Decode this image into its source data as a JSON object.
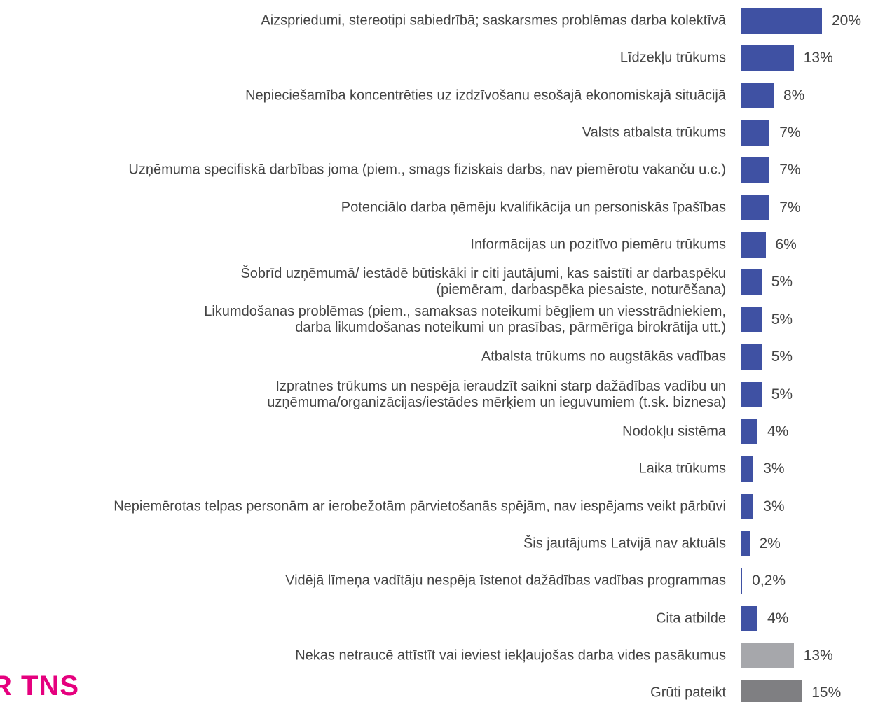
{
  "chart_data": {
    "type": "bar",
    "orientation": "horizontal",
    "categories": [
      "Aizspriedumi, stereotipi sabiedrībā; saskarsmes problēmas darba kolektīvā",
      "Līdzekļu trūkums",
      "Nepieciešamība koncentrēties uz izdzīvošanu esošajā ekonomiskajā situācijā",
      "Valsts atbalsta trūkums",
      "Uzņēmuma specifiskā darbības joma (piem., smags fiziskais darbs, nav piemērotu vakanču u.c.)",
      "Potenciālo darba ņēmēju kvalifikācija un personiskās īpašības",
      "Informācijas un pozitīvo piemēru trūkums",
      "Šobrīd uzņēmumā/ iestādē būtiskāki ir citi jautājumi, kas saistīti ar darbaspēku\n(piemēram, darbaspēka piesaiste, noturēšana)",
      "Likumdošanas problēmas (piem., samaksas noteikumi bēgļiem un viesstrādniekiem,\ndarba likumdošanas noteikumi un prasības, pārmērīga birokrātija utt.)",
      "Atbalsta trūkums no augstākās vadības",
      "Izpratnes trūkums un nespēja ieraudzīt saikni starp dažādības vadību un\nuzņēmuma/organizācijas/iestādes mērķiem un ieguvumiem (t.sk. biznesa)",
      "Nodokļu sistēma",
      "Laika trūkums",
      "Nepiemērotas telpas personām ar ierobežotām pārvietošanās spējām, nav iespējams veikt pārbūvi",
      "Šis jautājums Latvijā nav aktuāls",
      "Vidējā līmeņa vadītāju nespēja īstenot dažādības vadības programmas",
      "Cita atbilde",
      "Nekas netraucē attīstīt vai ieviest iekļaujošas darba vides pasākumus",
      "Grūti pateikt"
    ],
    "values": [
      20,
      13,
      8,
      7,
      7,
      7,
      6,
      5,
      5,
      5,
      5,
      4,
      3,
      3,
      2,
      0.2,
      4,
      13,
      15
    ],
    "value_labels": [
      "20%",
      "13%",
      "8%",
      "7%",
      "7%",
      "7%",
      "6%",
      "5%",
      "5%",
      "5%",
      "5%",
      "4%",
      "3%",
      "3%",
      "2%",
      "0,2%",
      "4%",
      "13%",
      "15%"
    ],
    "colors": [
      "#3f51a3",
      "#3f51a3",
      "#3f51a3",
      "#3f51a3",
      "#3f51a3",
      "#3f51a3",
      "#3f51a3",
      "#3f51a3",
      "#3f51a3",
      "#3f51a3",
      "#3f51a3",
      "#3f51a3",
      "#3f51a3",
      "#3f51a3",
      "#3f51a3",
      "#3f51a3",
      "#3f51a3",
      "#a6a7ab",
      "#7f7f82"
    ]
  },
  "logo": "R TNS"
}
